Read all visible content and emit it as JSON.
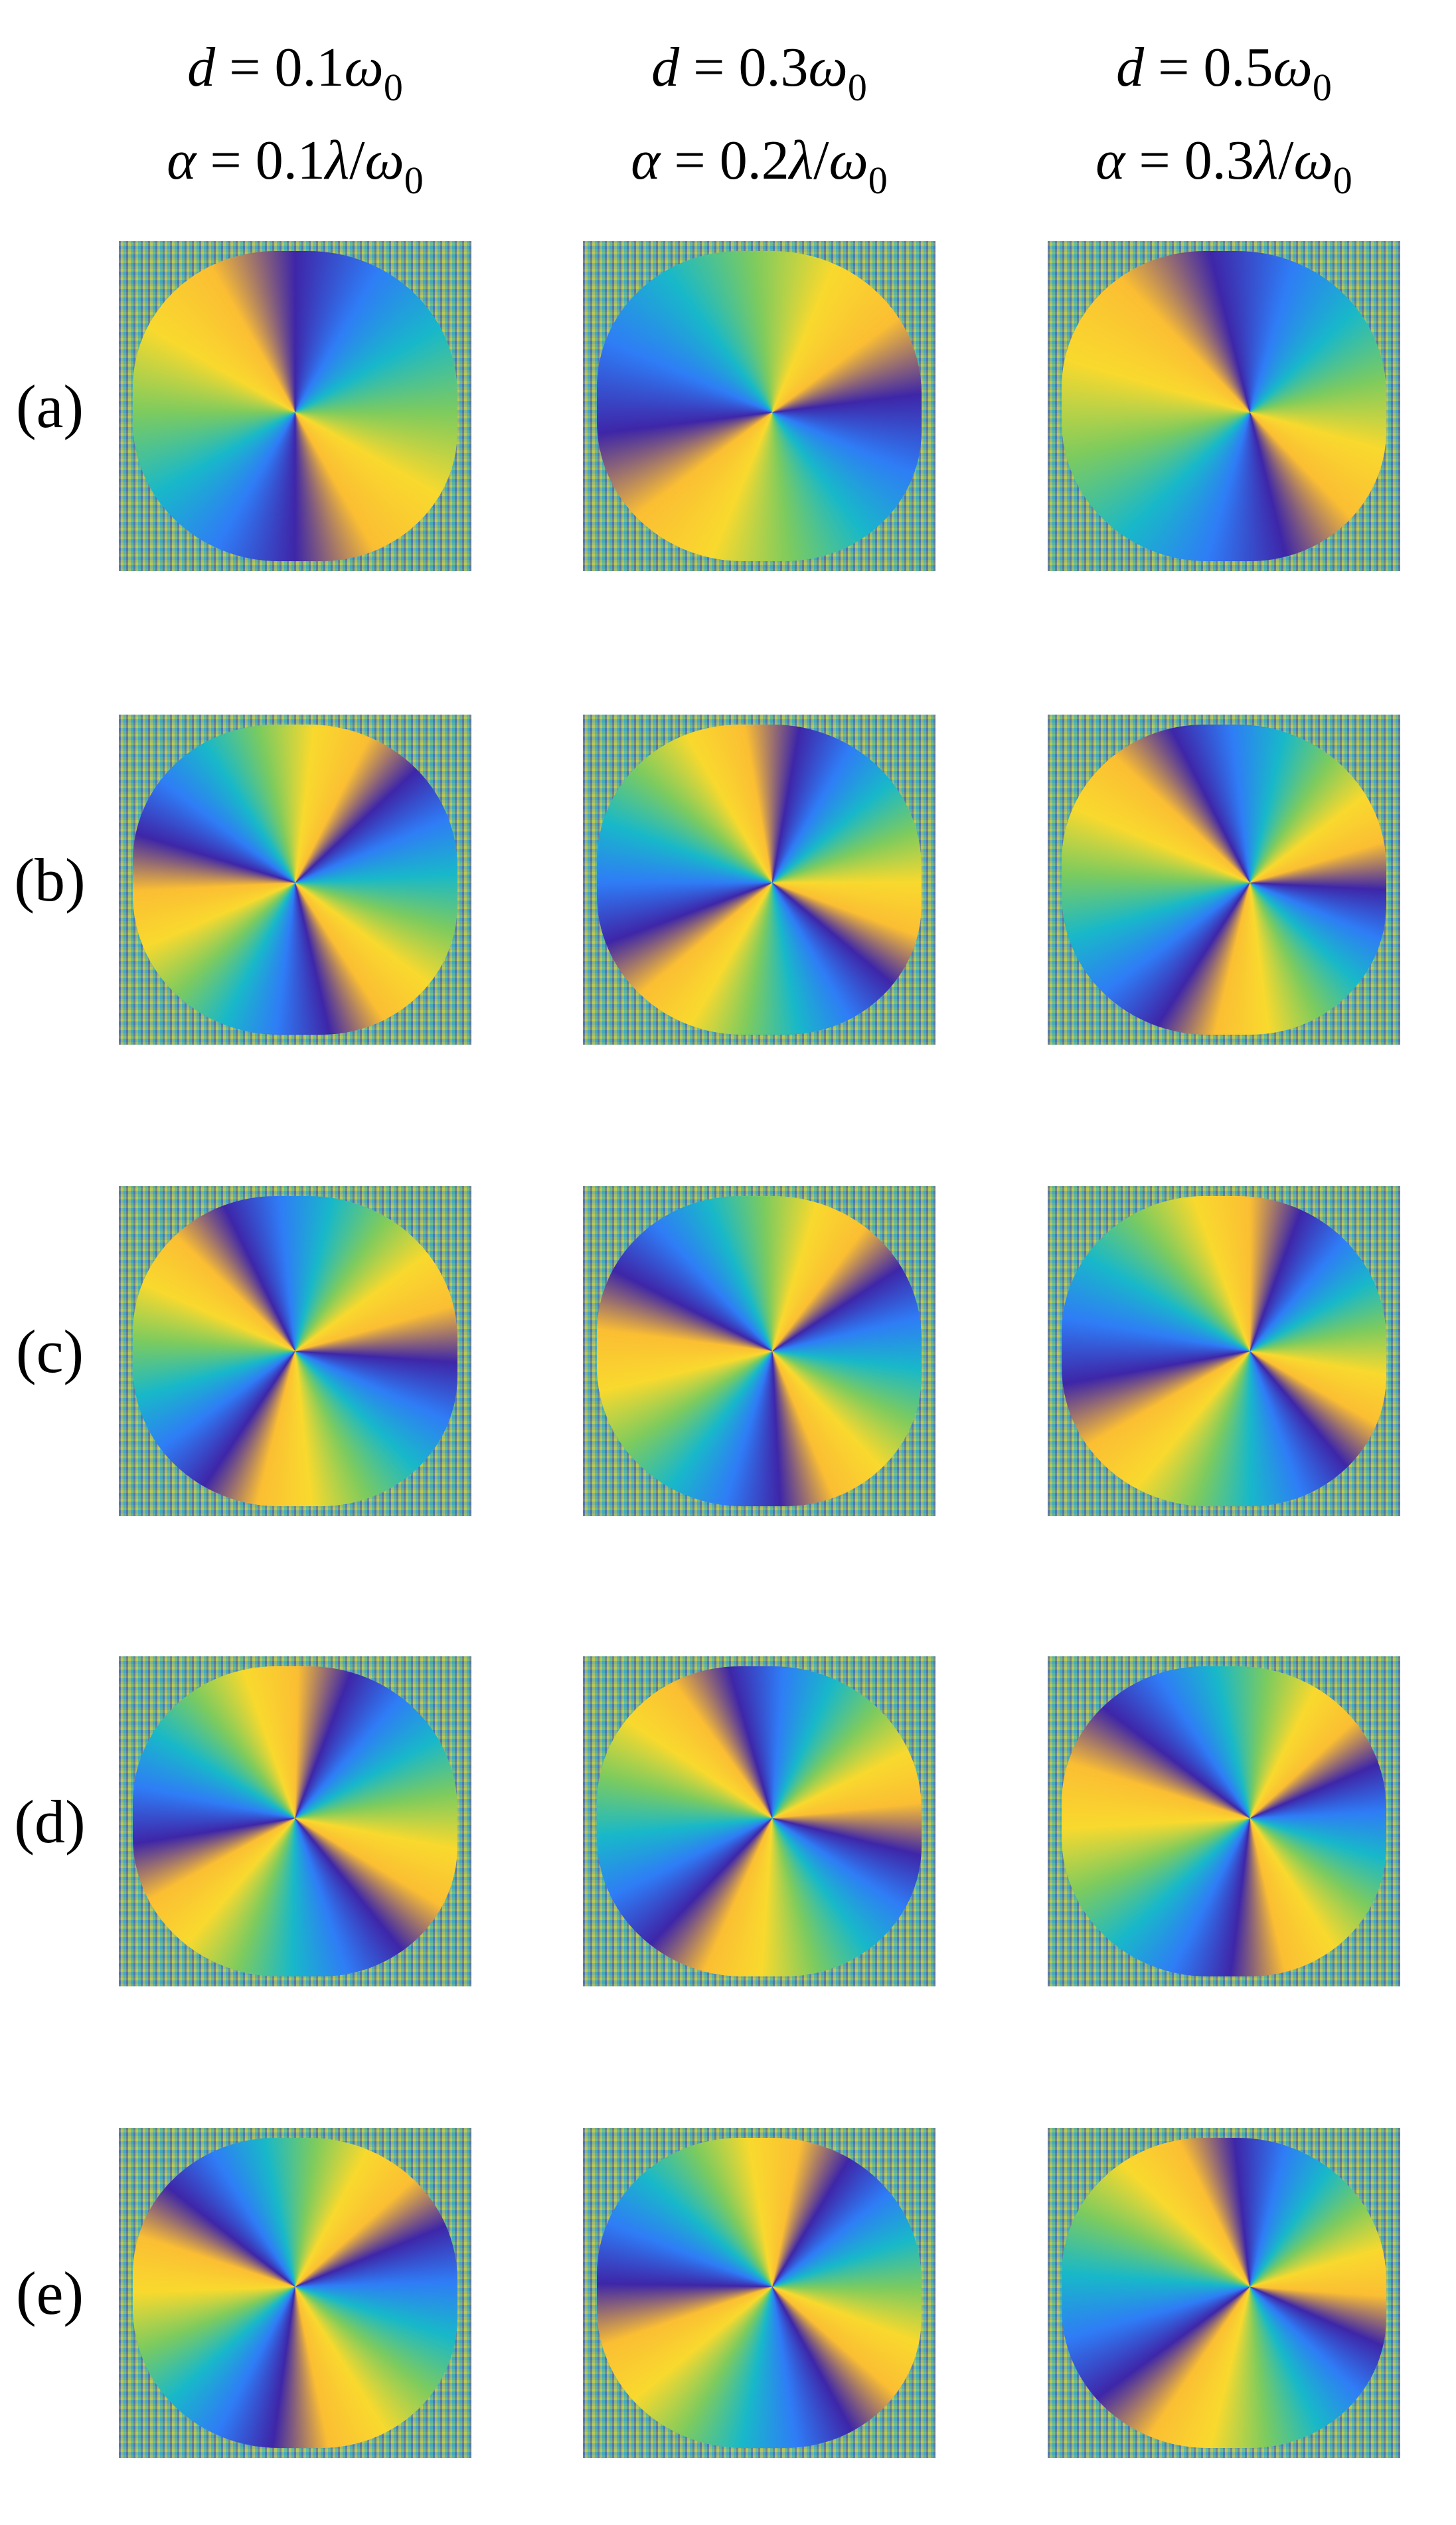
{
  "column_headers": [
    {
      "line1": [
        "d",
        " = 0.1",
        "ω",
        "0"
      ],
      "line2": [
        "α",
        " = 0.1",
        "λ",
        "/",
        "ω",
        "0"
      ]
    },
    {
      "line1": [
        "d",
        " = 0.3",
        "ω",
        "0"
      ],
      "line2": [
        "α",
        " = 0.2",
        "λ",
        "/",
        "ω",
        "0"
      ]
    },
    {
      "line1": [
        "d",
        " = 0.5",
        "ω",
        "0"
      ],
      "line2": [
        "α",
        " = 0.3",
        "λ",
        "/",
        "ω",
        "0"
      ]
    }
  ],
  "row_labels": [
    "(a)",
    "(b)",
    "(c)",
    "(d)",
    "(e)"
  ]
}
